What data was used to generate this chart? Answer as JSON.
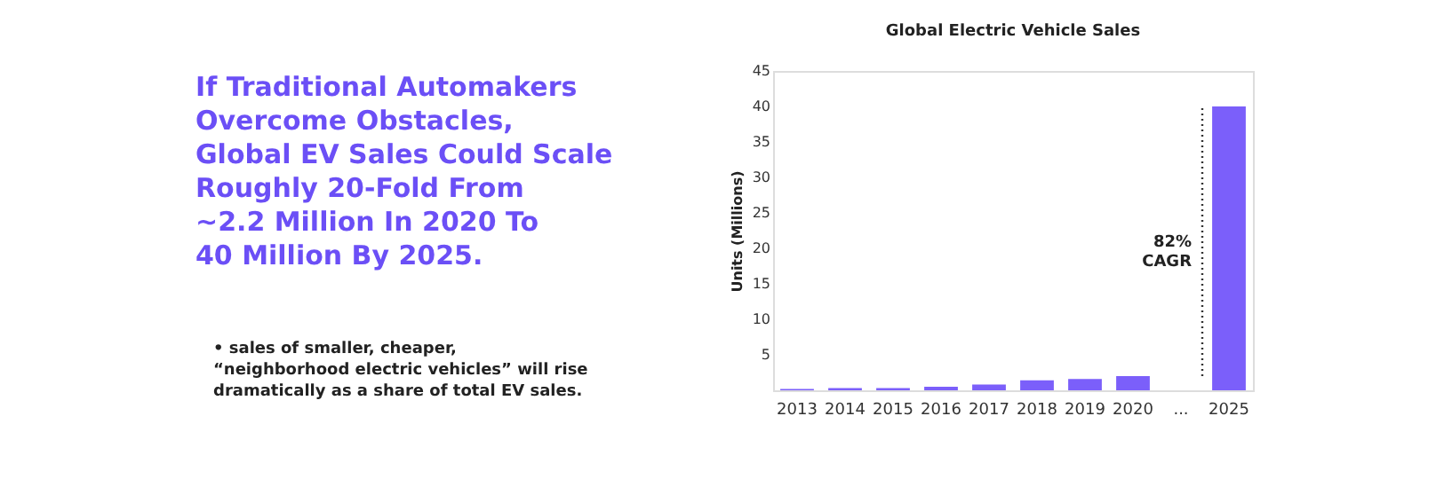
{
  "chart_data": [
    {
      "type": "other",
      "title": "If Traditional Automakers\nOvercome Obstacles,\nGlobal EV Sales Could Scale\nRoughly 20-Fold From\n~2.2 Million In 2020 To\n40 Million By 2025.",
      "color": "#6b4ff6",
      "annotations": [
        "• sales of smaller, cheaper,\n“neighborhood electric vehicles” will rise\ndramatically as a share of total EV sales."
      ]
    },
    {
      "type": "bar",
      "title": "Global Electric Vehicle Sales",
      "ylabel": "Units (Millions)",
      "categories": [
        "2013",
        "2014",
        "2015",
        "2016",
        "2017",
        "2018",
        "2019",
        "2020",
        "...",
        "2025"
      ],
      "values": [
        0.2,
        0.3,
        0.3,
        0.5,
        0.8,
        1.4,
        1.6,
        2.0,
        null,
        40
      ],
      "color": "#7b5ffa",
      "ylim": [
        0,
        45
      ],
      "yticks": [
        5,
        10,
        15,
        20,
        25,
        30,
        35,
        40,
        45
      ],
      "grid": false,
      "annotations": [
        "82%\nCAGR"
      ]
    }
  ]
}
